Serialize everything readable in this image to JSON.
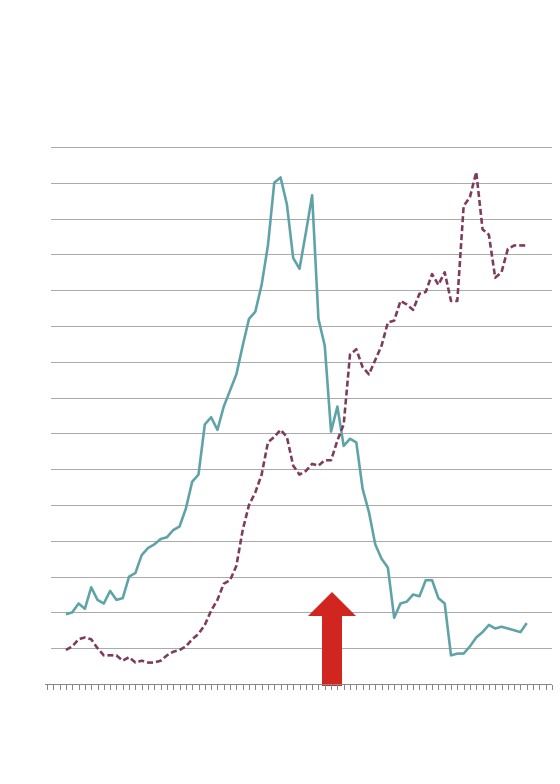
{
  "chart_data": {
    "type": "line",
    "x": [
      3,
      4,
      5,
      6,
      7,
      8,
      9,
      10,
      11,
      12,
      13,
      14,
      15,
      16,
      17,
      18,
      19,
      20,
      21,
      22,
      23,
      24,
      25,
      26,
      27,
      28,
      29,
      30,
      31,
      32,
      33,
      34,
      35,
      36,
      37,
      38,
      39,
      40,
      41,
      42,
      43,
      44,
      45,
      46,
      47,
      48,
      49,
      50,
      51,
      52,
      53,
      54,
      55,
      56,
      57,
      58,
      59,
      60,
      61,
      62,
      63,
      64,
      65,
      66,
      67,
      68,
      69,
      70,
      71,
      72,
      73,
      74,
      75,
      76
    ],
    "series": [
      {
        "color": "#5fa3a8",
        "dash": false,
        "values": [
          1.95,
          2.0,
          2.25,
          2.1,
          2.7,
          2.35,
          2.25,
          2.6,
          2.35,
          2.4,
          3.0,
          3.1,
          3.6,
          3.8,
          3.9,
          4.05,
          4.1,
          4.3,
          4.4,
          4.9,
          5.65,
          5.85,
          7.25,
          7.45,
          7.1,
          7.75,
          8.2,
          8.65,
          9.45,
          10.2,
          10.4,
          11.15,
          12.25,
          14.0,
          14.15,
          13.4,
          11.9,
          11.6,
          12.6,
          13.65,
          10.2,
          9.45,
          7.05,
          7.75,
          6.65,
          6.85,
          6.75,
          5.45,
          4.8,
          3.9,
          3.5,
          3.25,
          1.85,
          2.25,
          2.3,
          2.5,
          2.45,
          2.9,
          2.9,
          2.4,
          2.25,
          0.8,
          0.85,
          0.85,
          1.05,
          1.3,
          1.45,
          1.65,
          1.55,
          1.6,
          1.55,
          1.5,
          1.45,
          1.7
        ]
      },
      {
        "color": "#7e3c5c",
        "dash": true,
        "values": [
          0.95,
          1.05,
          1.25,
          1.3,
          1.25,
          1.0,
          0.8,
          0.8,
          0.8,
          0.65,
          0.75,
          0.6,
          0.65,
          0.6,
          0.6,
          0.65,
          0.8,
          0.9,
          0.95,
          1.05,
          1.25,
          1.4,
          1.65,
          2.05,
          2.35,
          2.8,
          2.9,
          3.3,
          4.3,
          5.0,
          5.35,
          5.85,
          6.75,
          6.9,
          7.1,
          6.9,
          6.1,
          5.85,
          5.95,
          6.15,
          6.1,
          6.25,
          6.25,
          6.8,
          7.25,
          9.2,
          9.35,
          8.85,
          8.65,
          9.05,
          9.45,
          10.1,
          10.15,
          10.7,
          10.6,
          10.45,
          10.9,
          10.95,
          11.45,
          11.15,
          11.5,
          10.7,
          10.7,
          13.35,
          13.6,
          14.3,
          12.7,
          12.55,
          11.35,
          11.5,
          12.15,
          12.25,
          12.25,
          12.25
        ]
      }
    ],
    "xlim": [
      0,
      80
    ],
    "xticks": [
      0,
      1,
      2,
      3,
      4,
      5,
      6,
      7,
      8,
      9,
      10,
      11,
      12,
      13,
      14,
      15,
      16,
      17,
      18,
      19,
      20,
      21,
      22,
      23,
      24,
      25,
      26,
      27,
      28,
      29,
      30,
      31,
      32,
      33,
      34,
      35,
      36,
      37,
      38,
      39,
      40,
      41,
      42,
      43,
      44,
      45,
      46,
      47,
      48,
      49,
      50,
      51,
      52,
      53,
      54,
      55,
      56,
      57,
      58,
      59,
      60,
      61,
      62,
      63,
      64,
      65,
      66,
      67,
      68,
      69,
      70,
      71,
      72,
      73,
      74,
      75,
      76,
      77,
      78,
      79,
      80
    ],
    "ylim": [
      0,
      15
    ],
    "yticks": [
      1,
      2,
      3,
      4,
      5,
      6,
      7,
      8,
      9,
      10,
      11,
      12,
      13,
      14,
      15
    ],
    "grid": true
  }
}
